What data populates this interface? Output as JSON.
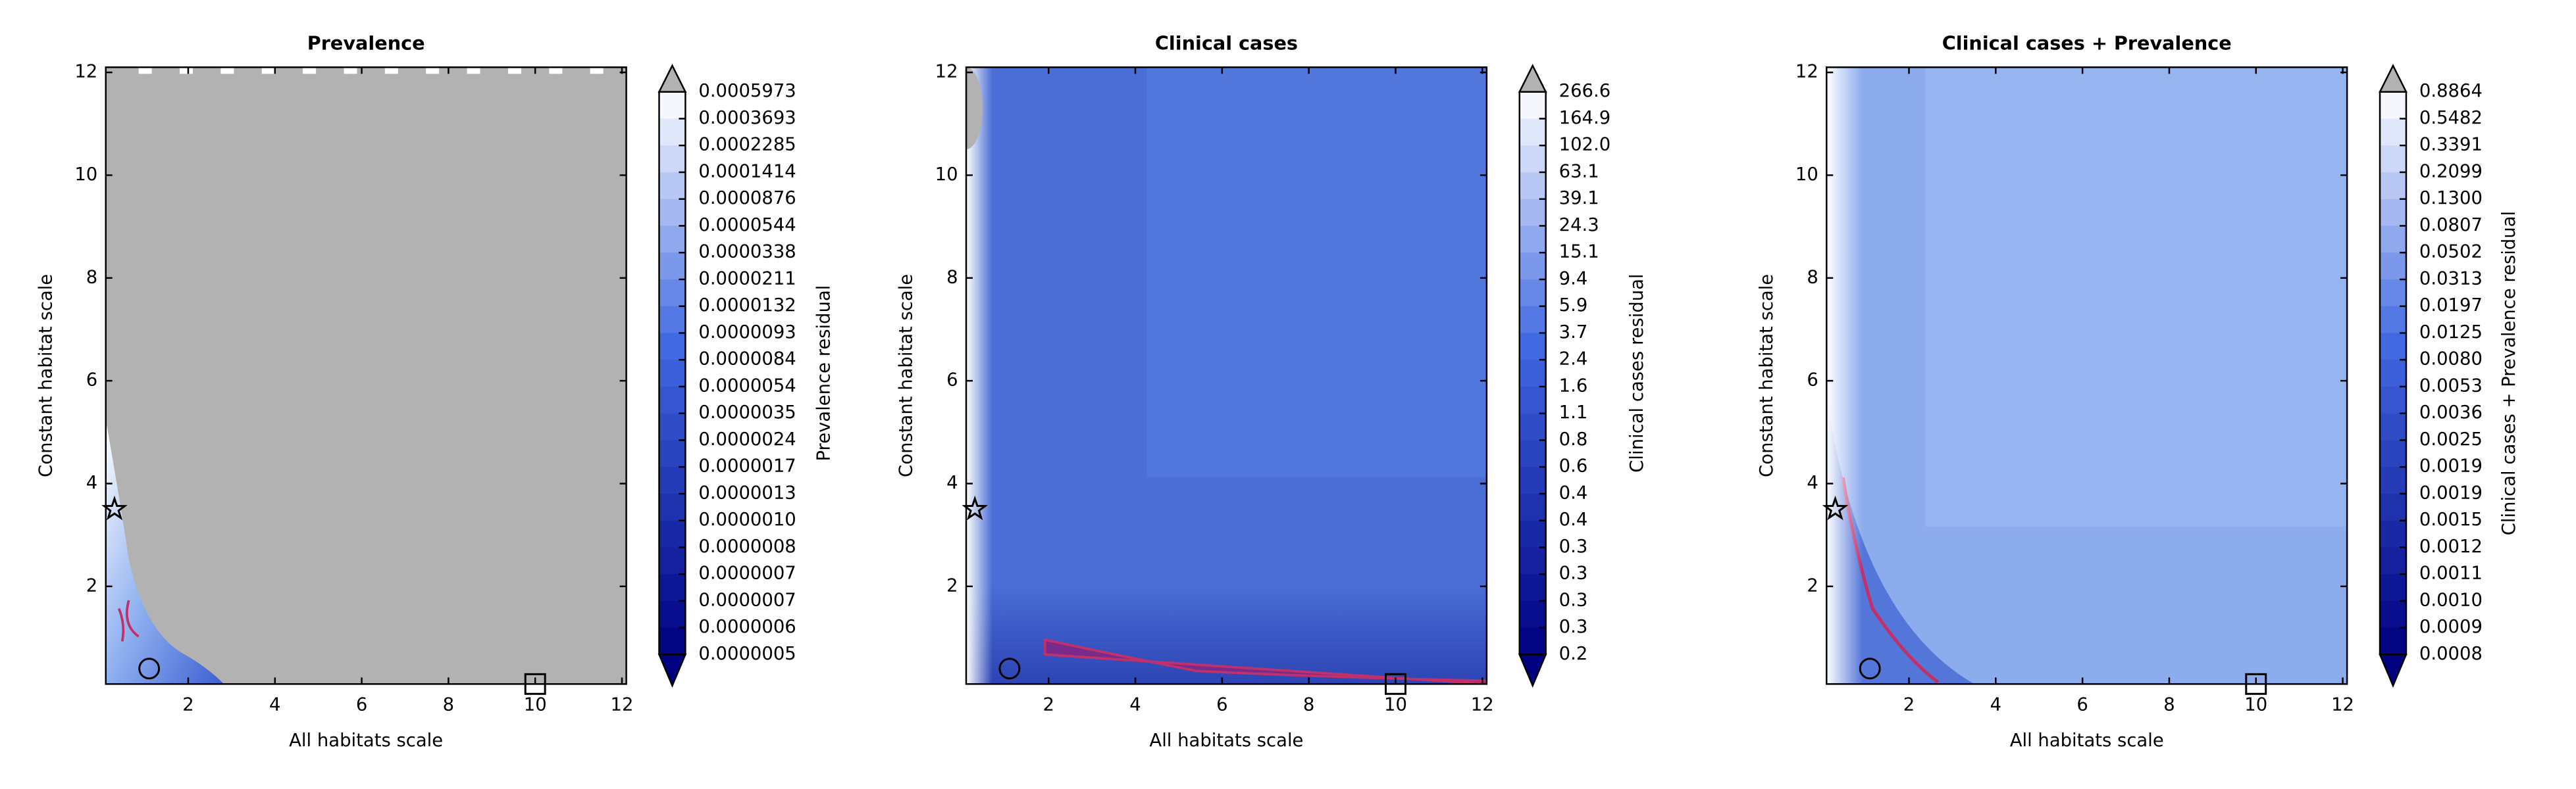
{
  "chart_data": [
    {
      "type": "contour",
      "title": "Prevalence",
      "xlabel": "All habitats scale",
      "ylabel": "Constant habitat scale",
      "colorbar_label": "Prevalence residual",
      "background_color": "#b2b2b2",
      "xlim": [
        0.1,
        12.1
      ],
      "ylim": [
        0.1,
        12.1
      ],
      "xticks": [
        2,
        4,
        6,
        8,
        10,
        12
      ],
      "yticks": [
        2,
        4,
        6,
        8,
        10,
        12
      ],
      "colorbar_ticks": [
        "0.0005973",
        "0.0003693",
        "0.0002285",
        "0.0001414",
        "0.0000876",
        "0.0000544",
        "0.0000338",
        "0.0000211",
        "0.0000132",
        "0.0000093",
        "0.0000084",
        "0.0000054",
        "0.0000035",
        "0.0000024",
        "0.0000017",
        "0.0000013",
        "0.0000010",
        "0.0000008",
        "0.0000007",
        "0.0000007",
        "0.0000006",
        "0.0000005"
      ],
      "markers": [
        {
          "x": 0.3,
          "y": 3.5,
          "symbol": "star"
        },
        {
          "x": 1.1,
          "y": 0.4,
          "symbol": "circle"
        },
        {
          "x": 10,
          "y": 0.1,
          "symbol": "square"
        }
      ]
    },
    {
      "type": "contour",
      "title": "Clinical cases",
      "xlabel": "All habitats scale",
      "ylabel": "Constant habitat scale",
      "colorbar_label": "Clinical cases residual",
      "background_color": "#4a6dd6",
      "xlim": [
        0.1,
        12.1
      ],
      "ylim": [
        0.1,
        12.1
      ],
      "xticks": [
        2,
        4,
        6,
        8,
        10,
        12
      ],
      "yticks": [
        2,
        4,
        6,
        8,
        10,
        12
      ],
      "colorbar_ticks": [
        "266.6",
        "164.9",
        "102.0",
        "63.1",
        "39.1",
        "24.3",
        "15.1",
        "9.4",
        "5.9",
        "3.7",
        "2.4",
        "1.6",
        "1.1",
        "0.8",
        "0.6",
        "0.4",
        "0.4",
        "0.3",
        "0.3",
        "0.3",
        "0.3",
        "0.2"
      ],
      "markers": [
        {
          "x": 0.3,
          "y": 3.5,
          "symbol": "star"
        },
        {
          "x": 1.1,
          "y": 0.4,
          "symbol": "circle"
        },
        {
          "x": 10,
          "y": 0.1,
          "symbol": "square"
        }
      ]
    },
    {
      "type": "contour",
      "title": "Clinical cases + Prevalence",
      "xlabel": "All habitats scale",
      "ylabel": "Constant habitat scale",
      "colorbar_label": "Clinical cases + Prevalence residual",
      "background_color": "#8caced",
      "xlim": [
        0.1,
        12.1
      ],
      "ylim": [
        0.1,
        12.1
      ],
      "xticks": [
        2,
        4,
        6,
        8,
        10,
        12
      ],
      "yticks": [
        2,
        4,
        6,
        8,
        10,
        12
      ],
      "colorbar_ticks": [
        "0.8864",
        "0.5482",
        "0.3391",
        "0.2099",
        "0.1300",
        "0.0807",
        "0.0502",
        "0.0313",
        "0.0197",
        "0.0125",
        "0.0080",
        "0.0053",
        "0.0036",
        "0.0025",
        "0.0019",
        "0.0019",
        "0.0015",
        "0.0012",
        "0.0011",
        "0.0010",
        "0.0009",
        "0.0008"
      ],
      "markers": [
        {
          "x": 0.3,
          "y": 3.5,
          "symbol": "star"
        },
        {
          "x": 1.1,
          "y": 0.4,
          "symbol": "circle"
        },
        {
          "x": 10,
          "y": 0.1,
          "symbol": "square"
        }
      ]
    }
  ]
}
